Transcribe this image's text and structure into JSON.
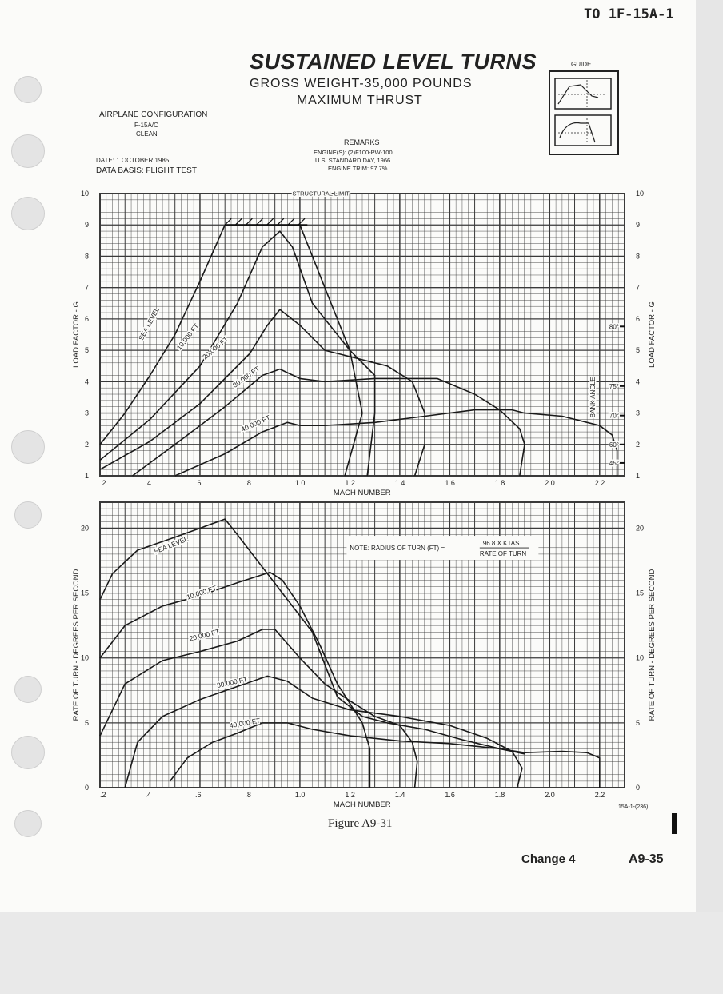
{
  "header": {
    "doc_id": "TO 1F-15A-1"
  },
  "title": {
    "main": "SUSTAINED LEVEL TURNS",
    "line2": "GROSS WEIGHT-35,000 POUNDS",
    "line3": "MAXIMUM THRUST"
  },
  "guide_label": "GUIDE",
  "config": {
    "heading": "AIRPLANE CONFIGURATION",
    "model": "F-15A/C",
    "state": "CLEAN",
    "date": "DATE: 1 OCTOBER 1985",
    "basis": "DATA BASIS: FLIGHT TEST"
  },
  "remarks": {
    "heading": "REMARKS",
    "engines": "ENGINE(S): (2)F100-PW-100",
    "day": "U.S. STANDARD DAY, 1966",
    "trim": "ENGINE TRIM: 97.7%"
  },
  "figure_caption": "Figure A9-31",
  "figure_code": "15A-1-(236)",
  "footer": {
    "change": "Change 4",
    "page": "A9-35"
  },
  "colors": {
    "paper": "#fbfbf9",
    "grid": "#3a3a3a",
    "ink": "#222222"
  },
  "chart_data": [
    {
      "type": "line",
      "xlabel": "MACH NUMBER",
      "ylabel": "LOAD FACTOR - G",
      "xlim": [
        0.2,
        2.3
      ],
      "ylim": [
        1,
        10
      ],
      "x_ticks": [
        ".2",
        ".4",
        ".6",
        ".8",
        "1.0",
        "1.2",
        "1.4",
        "1.6",
        "1.8",
        "2.0",
        "2.2"
      ],
      "y_ticks": [
        "1",
        "2",
        "3",
        "4",
        "5",
        "6",
        "7",
        "8",
        "9",
        "10"
      ],
      "annotations": {
        "structural_limit": "STRUCTURAL LIMIT",
        "bank_angle": "BANK ANGLE",
        "bank_marks": [
          {
            "g": 5.76,
            "label": "80°"
          },
          {
            "g": 3.86,
            "label": "75°"
          },
          {
            "g": 2.92,
            "label": "70°"
          },
          {
            "g": 2.0,
            "label": "60°"
          },
          {
            "g": 1.41,
            "label": "45°"
          }
        ]
      },
      "series": [
        {
          "name": "SEA LEVEL",
          "x": [
            0.2,
            0.3,
            0.4,
            0.5,
            0.6,
            0.7,
            0.9,
            1.0,
            1.1,
            1.2,
            1.25,
            1.18
          ],
          "y": [
            2.0,
            3.0,
            4.2,
            5.5,
            7.2,
            9.0,
            9.0,
            9.0,
            7.0,
            5.0,
            3.0,
            1.0
          ]
        },
        {
          "name": "10,000 FT",
          "x": [
            0.2,
            0.4,
            0.6,
            0.75,
            0.85,
            0.92,
            0.97,
            1.05,
            1.2,
            1.3,
            1.3,
            1.27
          ],
          "y": [
            1.5,
            2.8,
            4.5,
            6.5,
            8.3,
            8.8,
            8.3,
            6.5,
            5.0,
            4.2,
            3.0,
            1.0
          ]
        },
        {
          "name": "20,000 FT",
          "x": [
            0.2,
            0.4,
            0.6,
            0.8,
            0.87,
            0.92,
            1.0,
            1.1,
            1.25,
            1.35,
            1.45,
            1.5,
            1.5,
            1.46
          ],
          "y": [
            1.2,
            2.1,
            3.3,
            4.9,
            5.8,
            6.3,
            5.8,
            5.0,
            4.7,
            4.5,
            4.0,
            3.0,
            2.0,
            1.0
          ]
        },
        {
          "name": "30,000 FT",
          "x": [
            0.33,
            0.5,
            0.7,
            0.85,
            0.92,
            1.0,
            1.1,
            1.3,
            1.55,
            1.7,
            1.8,
            1.88,
            1.9,
            1.88
          ],
          "y": [
            1.0,
            2.0,
            3.2,
            4.2,
            4.4,
            4.1,
            4.0,
            4.1,
            4.1,
            3.6,
            3.1,
            2.5,
            2.0,
            1.0
          ]
        },
        {
          "name": "40,000 FT",
          "x": [
            0.5,
            0.7,
            0.85,
            0.95,
            1.0,
            1.1,
            1.3,
            1.5,
            1.7,
            1.85,
            1.9,
            2.05,
            2.2,
            2.25,
            2.27,
            2.27
          ],
          "y": [
            1.0,
            1.7,
            2.4,
            2.7,
            2.6,
            2.6,
            2.7,
            2.9,
            3.1,
            3.1,
            3.0,
            2.9,
            2.6,
            2.3,
            1.8,
            1.0
          ]
        }
      ]
    },
    {
      "type": "line",
      "xlabel": "MACH NUMBER",
      "ylabel": "RATE OF TURN - DEGREES PER SECOND",
      "xlim": [
        0.2,
        2.3
      ],
      "ylim": [
        0,
        22
      ],
      "x_ticks": [
        ".2",
        ".4",
        ".6",
        ".8",
        "1.0",
        "1.2",
        "1.4",
        "1.6",
        "1.8",
        "2.0",
        "2.2"
      ],
      "y_ticks": [
        "0",
        "5",
        "10",
        "15",
        "20"
      ],
      "annotations": {
        "note": "NOTE:  RADIUS OF TURN (FT) =",
        "numerator": "96.8 X KTAS",
        "denominator": "RATE OF TURN"
      },
      "series": [
        {
          "name": "SEA LEVEL",
          "x": [
            0.2,
            0.25,
            0.35,
            0.5,
            0.6,
            0.7,
            0.75,
            0.85,
            0.95,
            1.05,
            1.1,
            1.15,
            1.25,
            1.35,
            1.5,
            1.65,
            1.8,
            1.9,
            2.05,
            2.15,
            2.2,
            2.2
          ],
          "y": [
            14.5,
            16.5,
            18.3,
            19.3,
            20.0,
            20.7,
            19.5,
            17.0,
            14.5,
            12.0,
            9.5,
            7.0,
            5.5,
            5.0,
            4.5,
            3.7,
            3.0,
            2.7,
            2.8,
            2.7,
            2.3,
            0.0
          ]
        },
        {
          "name": "10,000 FT",
          "x": [
            0.2,
            0.3,
            0.45,
            0.6,
            0.75,
            0.88,
            0.93,
            1.0,
            1.08,
            1.15,
            1.2,
            1.25,
            1.28,
            1.28
          ],
          "y": [
            10.0,
            12.5,
            14.0,
            14.8,
            15.8,
            16.6,
            16.0,
            14.0,
            11.0,
            8.0,
            6.5,
            5.0,
            3.0,
            0.0
          ]
        },
        {
          "name": "20,000 FT",
          "x": [
            0.2,
            0.3,
            0.45,
            0.6,
            0.75,
            0.85,
            0.9,
            1.0,
            1.1,
            1.2,
            1.3,
            1.4,
            1.45,
            1.47,
            1.46
          ],
          "y": [
            4.0,
            8.0,
            9.8,
            10.5,
            11.3,
            12.2,
            12.2,
            10.0,
            8.0,
            6.7,
            5.5,
            4.8,
            3.5,
            2.0,
            0.0
          ]
        },
        {
          "name": "30,000 FT",
          "x": [
            0.3,
            0.35,
            0.45,
            0.6,
            0.75,
            0.87,
            0.95,
            1.05,
            1.2,
            1.4,
            1.6,
            1.75,
            1.85,
            1.89,
            1.87
          ],
          "y": [
            0.0,
            3.5,
            5.5,
            6.8,
            7.8,
            8.6,
            8.2,
            6.9,
            6.0,
            5.5,
            4.8,
            3.8,
            2.8,
            1.5,
            0.0
          ]
        },
        {
          "name": "40,000 FT",
          "x": [
            0.48,
            0.55,
            0.65,
            0.75,
            0.85,
            0.95,
            1.05,
            1.2,
            1.4,
            1.6,
            1.8,
            1.9
          ],
          "y": [
            0.5,
            2.3,
            3.5,
            4.2,
            5.0,
            5.0,
            4.5,
            4.0,
            3.6,
            3.4,
            3.0,
            2.6
          ]
        }
      ]
    }
  ]
}
